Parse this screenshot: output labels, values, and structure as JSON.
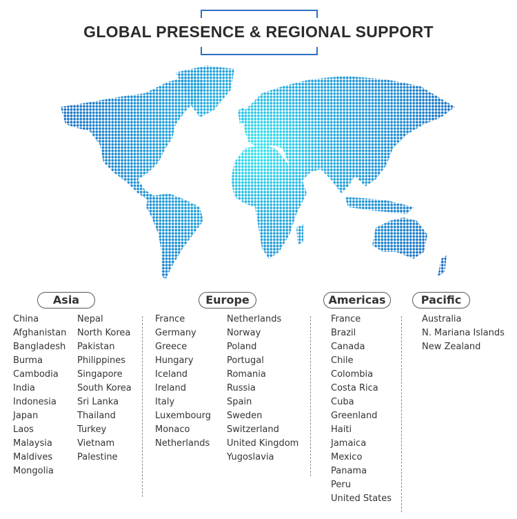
{
  "title": "GLOBAL PRESENCE & REGIONAL SUPPORT",
  "colors": {
    "frame": "#2f6fbf",
    "map_blue": "#1a78cc",
    "map_cyan": "#2fe8f2"
  },
  "regions": [
    {
      "name": "Asia",
      "columns": [
        [
          "China",
          "Afghanistan",
          "Bangladesh",
          "Burma",
          "Cambodia",
          "India",
          "Indonesia",
          "Japan",
          "Laos",
          "Malaysia",
          "Maldives",
          "Mongolia"
        ],
        [
          "Nepal",
          "North Korea",
          "Pakistan",
          "Philippines",
          "Singapore",
          "South Korea",
          "Sri Lanka",
          "Thailand",
          "Turkey",
          "Vietnam",
          "Palestine"
        ]
      ]
    },
    {
      "name": "Europe",
      "columns": [
        [
          "France",
          "Germany",
          "Greece",
          "Hungary",
          "Iceland",
          "Ireland",
          "Italy",
          "Luxembourg",
          "Monaco",
          "Netherlands"
        ],
        [
          "Netherlands",
          "Norway",
          "Poland",
          "Portugal",
          "Romania",
          "Russia",
          "Spain",
          "Sweden",
          "Switzerland",
          "United Kingdom",
          "Yugoslavia"
        ]
      ]
    },
    {
      "name": "Americas",
      "columns": [
        [
          "France",
          "Brazil",
          "Canada",
          "Chile",
          "Colombia",
          "Costa Rica",
          "Cuba",
          "Greenland",
          "Haiti",
          "Jamaica",
          "Mexico",
          "Panama",
          "Peru",
          "United States"
        ]
      ]
    },
    {
      "name": "Pacific",
      "columns": [
        [
          "Australia",
          "N. Mariana Islands",
          "New Zealand"
        ]
      ]
    }
  ]
}
